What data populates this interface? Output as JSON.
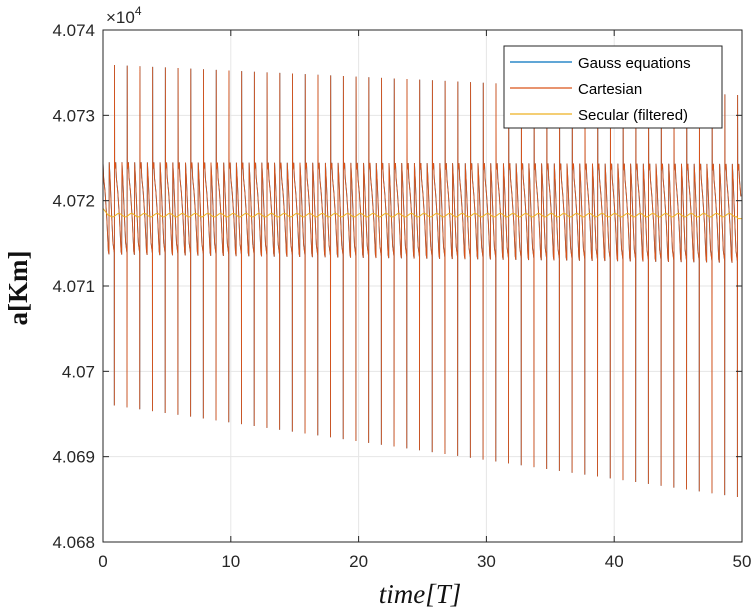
{
  "chart_data": {
    "type": "line",
    "xlabel": "time[T]",
    "ylabel": "a[Km]",
    "xlim": [
      0,
      50
    ],
    "ylim": [
      4.068,
      4.074
    ],
    "y_multiplier": "×10",
    "y_multiplier_exp": "4",
    "x_ticks": [
      "0",
      "10",
      "20",
      "30",
      "40",
      "50"
    ],
    "y_ticks": [
      "4.068",
      "4.069",
      "4.07",
      "4.071",
      "4.072",
      "4.073",
      "4.074"
    ],
    "x_tick_values": [
      0,
      10,
      20,
      30,
      40,
      50
    ],
    "y_tick_values": [
      4.068,
      4.069,
      4.07,
      4.071,
      4.072,
      4.073,
      4.074
    ],
    "grid": true,
    "legend_position": "top-right",
    "colors": {
      "gauss": "#0072BD",
      "cartesian": "#D95319",
      "secular": "#EDB120"
    },
    "period": 0.995,
    "series": [
      {
        "name": "Gauss equations",
        "description_of_shape": "periodic oscillation, overlaid by Cartesian",
        "upper_peak_start": 4.07245,
        "upper_peak_end": 4.07243,
        "lower_dip_start": 4.07137,
        "lower_dip_end": 4.07127,
        "spike_max_start": 4.07359,
        "spike_max_end": 4.07323,
        "spike_min_start": 4.0696,
        "spike_min_end": 4.0685
      },
      {
        "name": "Cartesian",
        "upper_peak_start": 4.07245,
        "upper_peak_end": 4.07243,
        "lower_dip_start": 4.07137,
        "lower_dip_end": 4.07127,
        "spike_max_start": 4.07359,
        "spike_max_end": 4.07323,
        "spike_min_start": 4.0696,
        "spike_min_end": 4.0685
      },
      {
        "name": "Secular (filtered)",
        "mean": 4.07183,
        "amplitude": 2e-05
      }
    ]
  }
}
